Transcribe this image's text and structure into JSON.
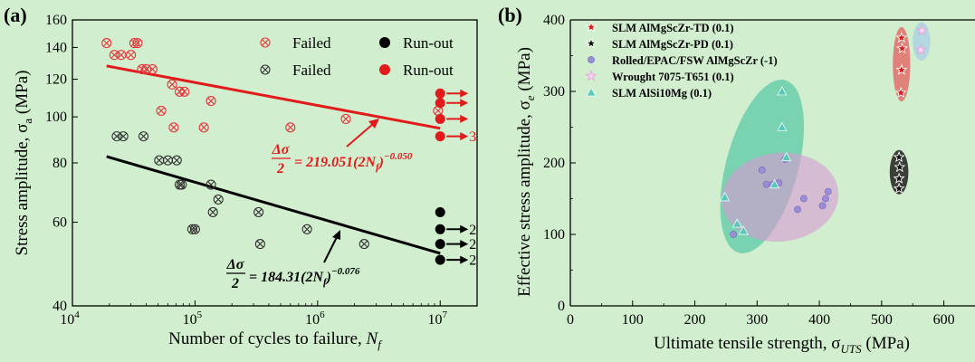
{
  "figure": {
    "panel_a": "(a)",
    "panel_b": "(b)"
  },
  "chart_data": [
    {
      "type": "scatter",
      "panel": "(a)",
      "xscale": "log",
      "yscale": "log",
      "xlim": [
        10000,
        20000000
      ],
      "ylim": [
        40,
        160
      ],
      "xticks": [
        10000,
        100000,
        1000000,
        10000000
      ],
      "xtick_labels": [
        "10",
        "10",
        "10",
        "10"
      ],
      "xtick_exponents": [
        "4",
        "5",
        "6",
        "7"
      ],
      "yticks": [
        40,
        60,
        80,
        100,
        120,
        140,
        160
      ],
      "ytick_labels": [
        "40",
        "60",
        "80",
        "100",
        "120",
        "140",
        "160"
      ],
      "xlabel": "Number of cycles to failure, ",
      "xlabel_var": "N",
      "xlabel_sub": "f",
      "ylabel": "Stress amplitude, σ",
      "ylabel_sub": "a",
      "ylabel_unit": " (MPa)",
      "legend_position": "top-right",
      "legend": [
        {
          "label": "Failed",
          "marker": "circle-x",
          "color": "#e8393f"
        },
        {
          "label": "Run-out",
          "marker": "filled-circle",
          "color": "#000000"
        },
        {
          "label": "Failed",
          "marker": "circle-x",
          "color": "#333333"
        },
        {
          "label": "Run-out",
          "marker": "filled-circle",
          "color": "#e11b1b"
        }
      ],
      "series": [
        {
          "color": "#e8393f",
          "failed": [
            {
              "x": 19000,
              "y": 143
            },
            {
              "x": 22000,
              "y": 135
            },
            {
              "x": 25000,
              "y": 135
            },
            {
              "x": 30000,
              "y": 135
            },
            {
              "x": 32000,
              "y": 143
            },
            {
              "x": 34000,
              "y": 143
            },
            {
              "x": 37000,
              "y": 126
            },
            {
              "x": 40000,
              "y": 126
            },
            {
              "x": 45000,
              "y": 126
            },
            {
              "x": 53000,
              "y": 103
            },
            {
              "x": 65000,
              "y": 117
            },
            {
              "x": 67000,
              "y": 95
            },
            {
              "x": 75000,
              "y": 113
            },
            {
              "x": 82000,
              "y": 113
            },
            {
              "x": 118000,
              "y": 95
            },
            {
              "x": 135000,
              "y": 108
            },
            {
              "x": 600000,
              "y": 95
            },
            {
              "x": 1700000,
              "y": 99
            },
            {
              "x": 9600000,
              "y": 103
            }
          ],
          "runout": [
            {
              "x": 10000000,
              "y": 112
            },
            {
              "x": 10000000,
              "y": 107
            },
            {
              "x": 10000000,
              "y": 99
            },
            {
              "x": 10000000,
              "y": 91
            }
          ],
          "runout_arrows": [
            {
              "y": 112,
              "label": ""
            },
            {
              "y": 107,
              "label": ""
            },
            {
              "y": 99,
              "label": ""
            },
            {
              "y": 91,
              "label": "3"
            }
          ],
          "fit": {
            "x": [
              19000,
              10000000
            ],
            "y": [
              128,
              94.6
            ]
          },
          "equation": {
            "lhs_num": "Δσ",
            "lhs_den": "2",
            "rhs": "= 219.051(2N",
            "rhs_sub": "f",
            "rhs_end": ")",
            "exponent": "−0.050"
          }
        },
        {
          "color": "#333333",
          "failed": [
            {
              "x": 23000,
              "y": 91
            },
            {
              "x": 26000,
              "y": 91
            },
            {
              "x": 38000,
              "y": 91
            },
            {
              "x": 51000,
              "y": 81
            },
            {
              "x": 60000,
              "y": 81
            },
            {
              "x": 71000,
              "y": 81
            },
            {
              "x": 75000,
              "y": 72
            },
            {
              "x": 78000,
              "y": 72
            },
            {
              "x": 95000,
              "y": 58
            },
            {
              "x": 100000,
              "y": 58
            },
            {
              "x": 135000,
              "y": 72
            },
            {
              "x": 140000,
              "y": 63
            },
            {
              "x": 155000,
              "y": 67
            },
            {
              "x": 330000,
              "y": 63
            },
            {
              "x": 340000,
              "y": 54
            },
            {
              "x": 820000,
              "y": 58
            },
            {
              "x": 2400000,
              "y": 54
            }
          ],
          "runout": [
            {
              "x": 10000000,
              "y": 63
            },
            {
              "x": 10000000,
              "y": 58
            },
            {
              "x": 10000000,
              "y": 54
            },
            {
              "x": 10000000,
              "y": 50
            }
          ],
          "runout_arrows": [
            {
              "y": 58,
              "label": "2"
            },
            {
              "y": 54,
              "label": "2"
            },
            {
              "y": 50,
              "label": "2"
            }
          ],
          "fit": {
            "x": [
              19000,
              10000000
            ],
            "y": [
              82.5,
              51.6
            ]
          },
          "equation": {
            "lhs_num": "Δσ",
            "lhs_den": "2",
            "rhs": "= 184.31(2N",
            "rhs_sub": "f",
            "rhs_end": ")",
            "exponent": "−0.076"
          }
        }
      ]
    },
    {
      "type": "scatter",
      "panel": "(b)",
      "xlim": [
        0,
        650
      ],
      "ylim": [
        0,
        400
      ],
      "xticks": [
        0,
        100,
        200,
        300,
        400,
        500,
        600
      ],
      "yticks": [
        0,
        100,
        200,
        300,
        400
      ],
      "xlabel": "Ultimate tensile strength, σ",
      "xlabel_sub": "UTS",
      "xlabel_unit": " (MPa)",
      "ylabel": "Effective stress amplitude, σ",
      "ylabel_sub": "e",
      "ylabel_unit": " (MPa)",
      "legend_position": "top-left",
      "series": [
        {
          "name": "SLM AlMgScZr-TD (0.1)",
          "marker": "star",
          "color": "#e01818",
          "ellipse_color": "#e8393f",
          "points": [
            [
              532,
              375
            ],
            [
              533,
              360
            ],
            [
              532,
              330
            ],
            [
              531,
              298
            ]
          ],
          "ellipse": {
            "cx": 532,
            "cy": 338,
            "rx": 14,
            "ry": 52
          }
        },
        {
          "name": "SLM AlMgScZr-PD (0.1)",
          "marker": "star",
          "color": "#111111",
          "ellipse_color": "#202020",
          "points": [
            [
              528,
              208
            ],
            [
              529,
              194
            ],
            [
              528,
              178
            ],
            [
              528,
              164
            ]
          ],
          "ellipse": {
            "cx": 528,
            "cy": 187,
            "rx": 15,
            "ry": 31
          }
        },
        {
          "name": "Rolled/EPAC/FSW AlMgScZr (-1)",
          "marker": "sphere",
          "color": "#9a8fd6",
          "ellipse_color": "#d99ad6",
          "points": [
            [
              262,
              100
            ],
            [
              308,
              190
            ],
            [
              315,
              170
            ],
            [
              325,
              170
            ],
            [
              335,
              172
            ],
            [
              345,
              205
            ],
            [
              365,
              135
            ],
            [
              375,
              150
            ],
            [
              405,
              140
            ],
            [
              410,
              150
            ],
            [
              414,
              160
            ]
          ],
          "ellipse": {
            "cx": 337,
            "cy": 152,
            "rx": 94,
            "ry": 62,
            "angle": -6
          }
        },
        {
          "name": "Wrought 7075-T651 (0.1)",
          "marker": "star-open",
          "color": "#e8a0dc",
          "ellipse_color": "#9ec7e8",
          "points": [
            [
              565,
              385
            ],
            [
              563,
              358
            ]
          ],
          "ellipse": {
            "cx": 564,
            "cy": 370,
            "rx": 14,
            "ry": 27
          }
        },
        {
          "name": "SLM AlSi10Mg (0.1)",
          "marker": "triangle",
          "color": "#5ac7b8",
          "ellipse_color": "#3fbf9b",
          "points": [
            [
              248,
              152
            ],
            [
              268,
              115
            ],
            [
              278,
              105
            ],
            [
              328,
              170
            ],
            [
              340,
              300
            ],
            [
              340,
              250
            ],
            [
              347,
              208
            ]
          ],
          "ellipse": {
            "cx": 308,
            "cy": 195,
            "rx": 58,
            "ry": 125,
            "angle": 15
          }
        }
      ]
    }
  ]
}
